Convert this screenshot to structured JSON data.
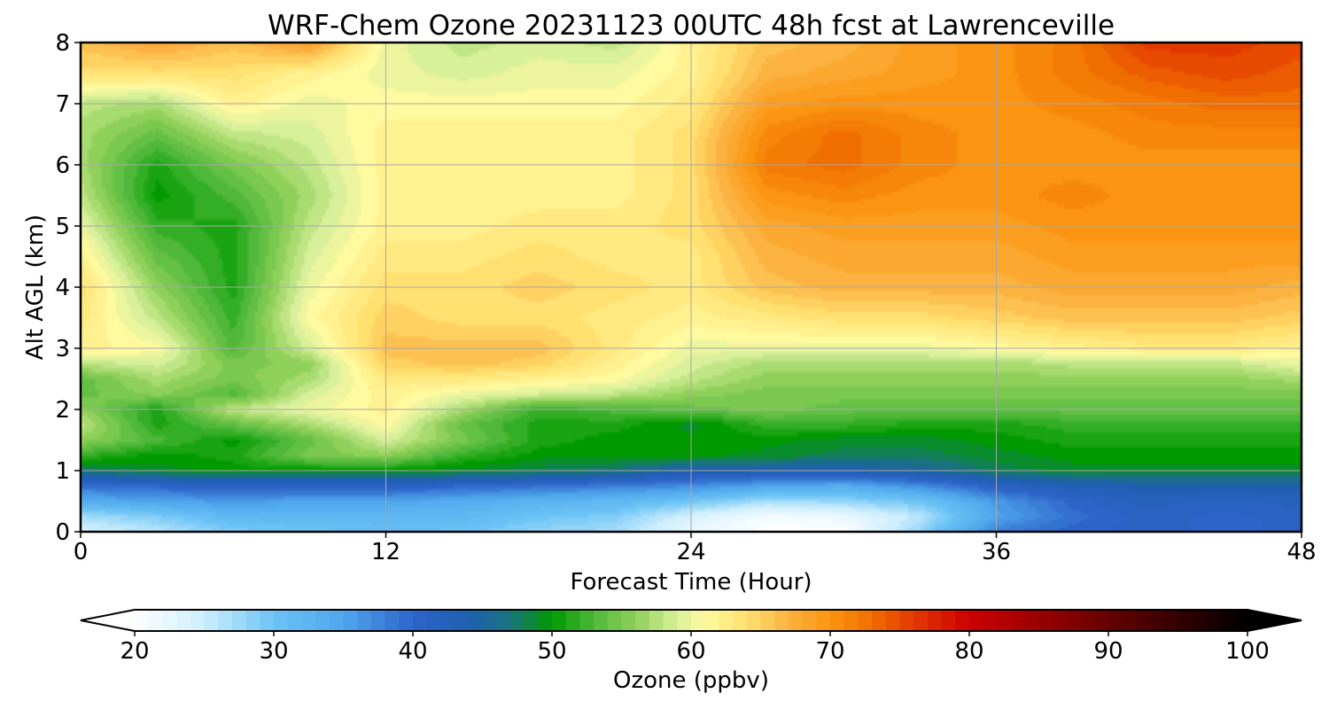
{
  "chart_data": {
    "type": "heatmap",
    "title": "WRF-Chem Ozone  20231123 00UTC 48h fcst at Lawrenceville",
    "xlabel": "Forecast Time (Hour)",
    "ylabel": "Alt AGL (km)",
    "xlim": [
      0,
      48
    ],
    "ylim": [
      0,
      8
    ],
    "xticks": [
      0,
      12,
      24,
      36,
      48
    ],
    "yticks": [
      0,
      1,
      2,
      3,
      4,
      5,
      6,
      7,
      8
    ],
    "grid": true,
    "x": [
      0,
      3,
      6,
      9,
      12,
      15,
      18,
      21,
      24,
      27,
      30,
      33,
      36,
      39,
      42,
      45,
      48
    ],
    "y": [
      0,
      0.25,
      0.5,
      0.75,
      1,
      1.25,
      1.5,
      1.75,
      2,
      2.25,
      2.5,
      2.75,
      3,
      3.5,
      4,
      4.5,
      5,
      5.5,
      6,
      6.5,
      7,
      7.5,
      8
    ],
    "z": [
      [
        24,
        26,
        29,
        30,
        31,
        30,
        28,
        27,
        22,
        20,
        20,
        28,
        38,
        40,
        41,
        40,
        41
      ],
      [
        27,
        29,
        32,
        32,
        32,
        32,
        30,
        29,
        24,
        21,
        22,
        26,
        35,
        39,
        41,
        40,
        41
      ],
      [
        34,
        35,
        36,
        35,
        35,
        34,
        33,
        32,
        30,
        27,
        28,
        30,
        36,
        40,
        42,
        41,
        42
      ],
      [
        39,
        40,
        41,
        41,
        41,
        40,
        39,
        38,
        37,
        35,
        34,
        37,
        41,
        43,
        44,
        44,
        44
      ],
      [
        47,
        49,
        50,
        50,
        50,
        49,
        48,
        47,
        44,
        44,
        44,
        45,
        48,
        49,
        49,
        49,
        49
      ],
      [
        52,
        50,
        51,
        55,
        56,
        52,
        50,
        50,
        50,
        49,
        48,
        48,
        49,
        50,
        50,
        50,
        50
      ],
      [
        56,
        53,
        50,
        54,
        59,
        55,
        51,
        50,
        50,
        50,
        49,
        49,
        50,
        51,
        51,
        51,
        51
      ],
      [
        58,
        51,
        54,
        57,
        61,
        54,
        51,
        51,
        49,
        52,
        52,
        51,
        51,
        52,
        52,
        52,
        52
      ],
      [
        56,
        51,
        58,
        60,
        62,
        57,
        52,
        53,
        54,
        55,
        54,
        54,
        54,
        54,
        54,
        54,
        54
      ],
      [
        54,
        56,
        53,
        59,
        62,
        60,
        59,
        58,
        56,
        55,
        55,
        55,
        55,
        55,
        55,
        55,
        55
      ],
      [
        54,
        57,
        55,
        57,
        63,
        63,
        62,
        61,
        58,
        56,
        56,
        56,
        56,
        56,
        56,
        56,
        57
      ],
      [
        58,
        59,
        55,
        56,
        65,
        66,
        65,
        62,
        59,
        57,
        57,
        57,
        57,
        58,
        58,
        58,
        60
      ],
      [
        62,
        61,
        53,
        59,
        66,
        66,
        66,
        63,
        60,
        60,
        60,
        60,
        61,
        62,
        63,
        63,
        62
      ],
      [
        63,
        58,
        52,
        61,
        65,
        64,
        64,
        63,
        62,
        63,
        64,
        64,
        65,
        66,
        66,
        66,
        65
      ],
      [
        64,
        56,
        51,
        60,
        64,
        64,
        65,
        64,
        63,
        66,
        67,
        67,
        67,
        68,
        68,
        68,
        67
      ],
      [
        62,
        54,
        51,
        59,
        63,
        63,
        64,
        63,
        63,
        67,
        68,
        68,
        68,
        69,
        69,
        69,
        69
      ],
      [
        60,
        52,
        51,
        58,
        62,
        62,
        63,
        63,
        64,
        68,
        69,
        69,
        69,
        70,
        70,
        70,
        70
      ],
      [
        58,
        50,
        53,
        57,
        62,
        62,
        62,
        62,
        64,
        70,
        71,
        70,
        70,
        71,
        70,
        70,
        70
      ],
      [
        57,
        51,
        55,
        58,
        62,
        62,
        62,
        62,
        64,
        72,
        73,
        71,
        70,
        70,
        70,
        70,
        70
      ],
      [
        57,
        54,
        58,
        59,
        62,
        62,
        62,
        62,
        64,
        71,
        73,
        71,
        70,
        70,
        71,
        71,
        71
      ],
      [
        58,
        57,
        62,
        60,
        61,
        61,
        61,
        61,
        63,
        69,
        70,
        70,
        70,
        71,
        72,
        73,
        73
      ],
      [
        64,
        64,
        64,
        62,
        60,
        59,
        60,
        60,
        62,
        67,
        68,
        69,
        70,
        72,
        74,
        75,
        74
      ],
      [
        66,
        68,
        66,
        69,
        60,
        58,
        59,
        58,
        62,
        66,
        67,
        69,
        70,
        72,
        76,
        76,
        75
      ]
    ],
    "colorbar": {
      "label": "Ozone  (ppbv)",
      "min": 20,
      "max": 100,
      "ticks": [
        20,
        30,
        40,
        50,
        60,
        70,
        80,
        90,
        100
      ],
      "extend": "both",
      "stops": [
        {
          "v": 20,
          "c": "#ffffff"
        },
        {
          "v": 25,
          "c": "#cdeefd"
        },
        {
          "v": 30,
          "c": "#6cc3f5"
        },
        {
          "v": 35,
          "c": "#4fa6ec"
        },
        {
          "v": 40,
          "c": "#2d64c9"
        },
        {
          "v": 44,
          "c": "#1f5fb0"
        },
        {
          "v": 47,
          "c": "#19737d"
        },
        {
          "v": 50,
          "c": "#009a00"
        },
        {
          "v": 53,
          "c": "#4fb83a"
        },
        {
          "v": 56,
          "c": "#8fd05a"
        },
        {
          "v": 59,
          "c": "#d9f09a"
        },
        {
          "v": 61,
          "c": "#fffaa0"
        },
        {
          "v": 64,
          "c": "#ffe070"
        },
        {
          "v": 67,
          "c": "#fbb240"
        },
        {
          "v": 70,
          "c": "#fb9410"
        },
        {
          "v": 73,
          "c": "#f06e00"
        },
        {
          "v": 76,
          "c": "#e33800"
        },
        {
          "v": 80,
          "c": "#cc0000"
        },
        {
          "v": 85,
          "c": "#990000"
        },
        {
          "v": 90,
          "c": "#660000"
        },
        {
          "v": 95,
          "c": "#330000"
        },
        {
          "v": 100,
          "c": "#000000"
        }
      ]
    }
  }
}
